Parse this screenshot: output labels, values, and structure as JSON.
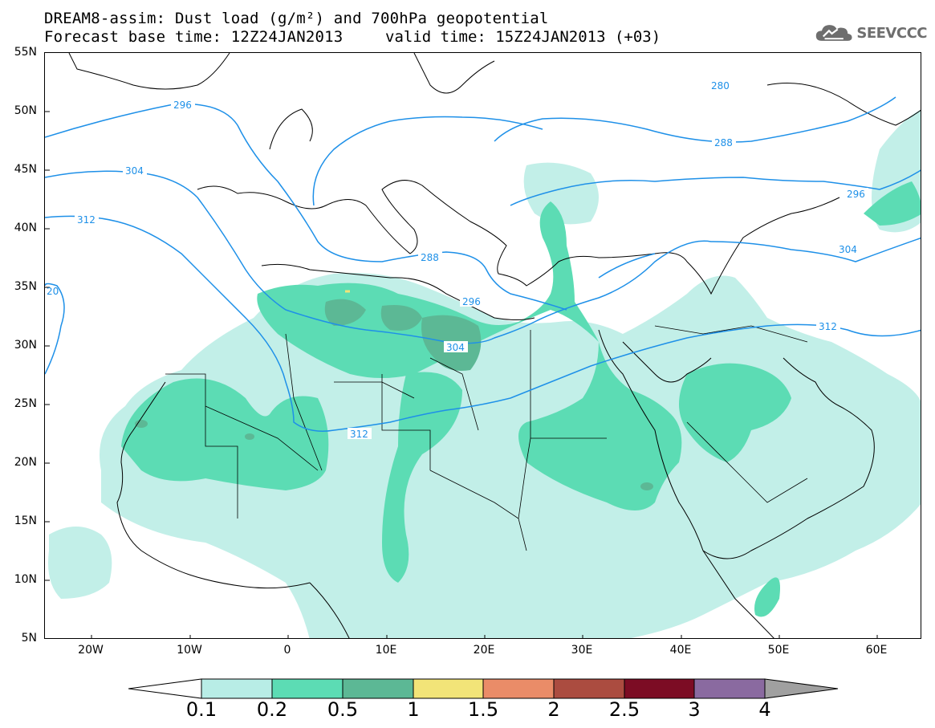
{
  "header": {
    "title_line1": "DREAM8-assim: Dust load (g/m²) and 700hPa geopotential",
    "title_line2": "Forecast base time: 12Z24JAN2013",
    "valid_time": "valid time: 15Z24JAN2013 (+03)"
  },
  "logo": {
    "text": "SEEVCCC",
    "icon": "cloud-icon"
  },
  "axes": {
    "lat_labels": [
      "55N",
      "50N",
      "45N",
      "40N",
      "35N",
      "30N",
      "25N",
      "20N",
      "15N",
      "10N",
      "5N"
    ],
    "lon_labels": [
      "20W",
      "10W",
      "0",
      "10E",
      "20E",
      "30E",
      "40E",
      "50E",
      "60E"
    ]
  },
  "contours": {
    "color": "#1e90e8",
    "labels": [
      "280",
      "288",
      "296",
      "296",
      "296",
      "304",
      "304",
      "304",
      "312",
      "312",
      "312",
      "20",
      "288"
    ]
  },
  "colorbar": {
    "labels": [
      "0.1",
      "0.2",
      "0.5",
      "1",
      "1.5",
      "2",
      "2.5",
      "3",
      "4"
    ],
    "colors": [
      "#b8ede6",
      "#5cdcb4",
      "#5cb895",
      "#f2e478",
      "#ea8c68",
      "#ab4c40",
      "#7c0c24",
      "#8a6aa0",
      "#a0a0a0"
    ]
  },
  "map_colors": {
    "ocean": "#ffffff",
    "coast": "#000000",
    "dust_low": "#c2efe8",
    "dust_mid": "#5cdcb4",
    "dust_high": "#5cb895"
  }
}
